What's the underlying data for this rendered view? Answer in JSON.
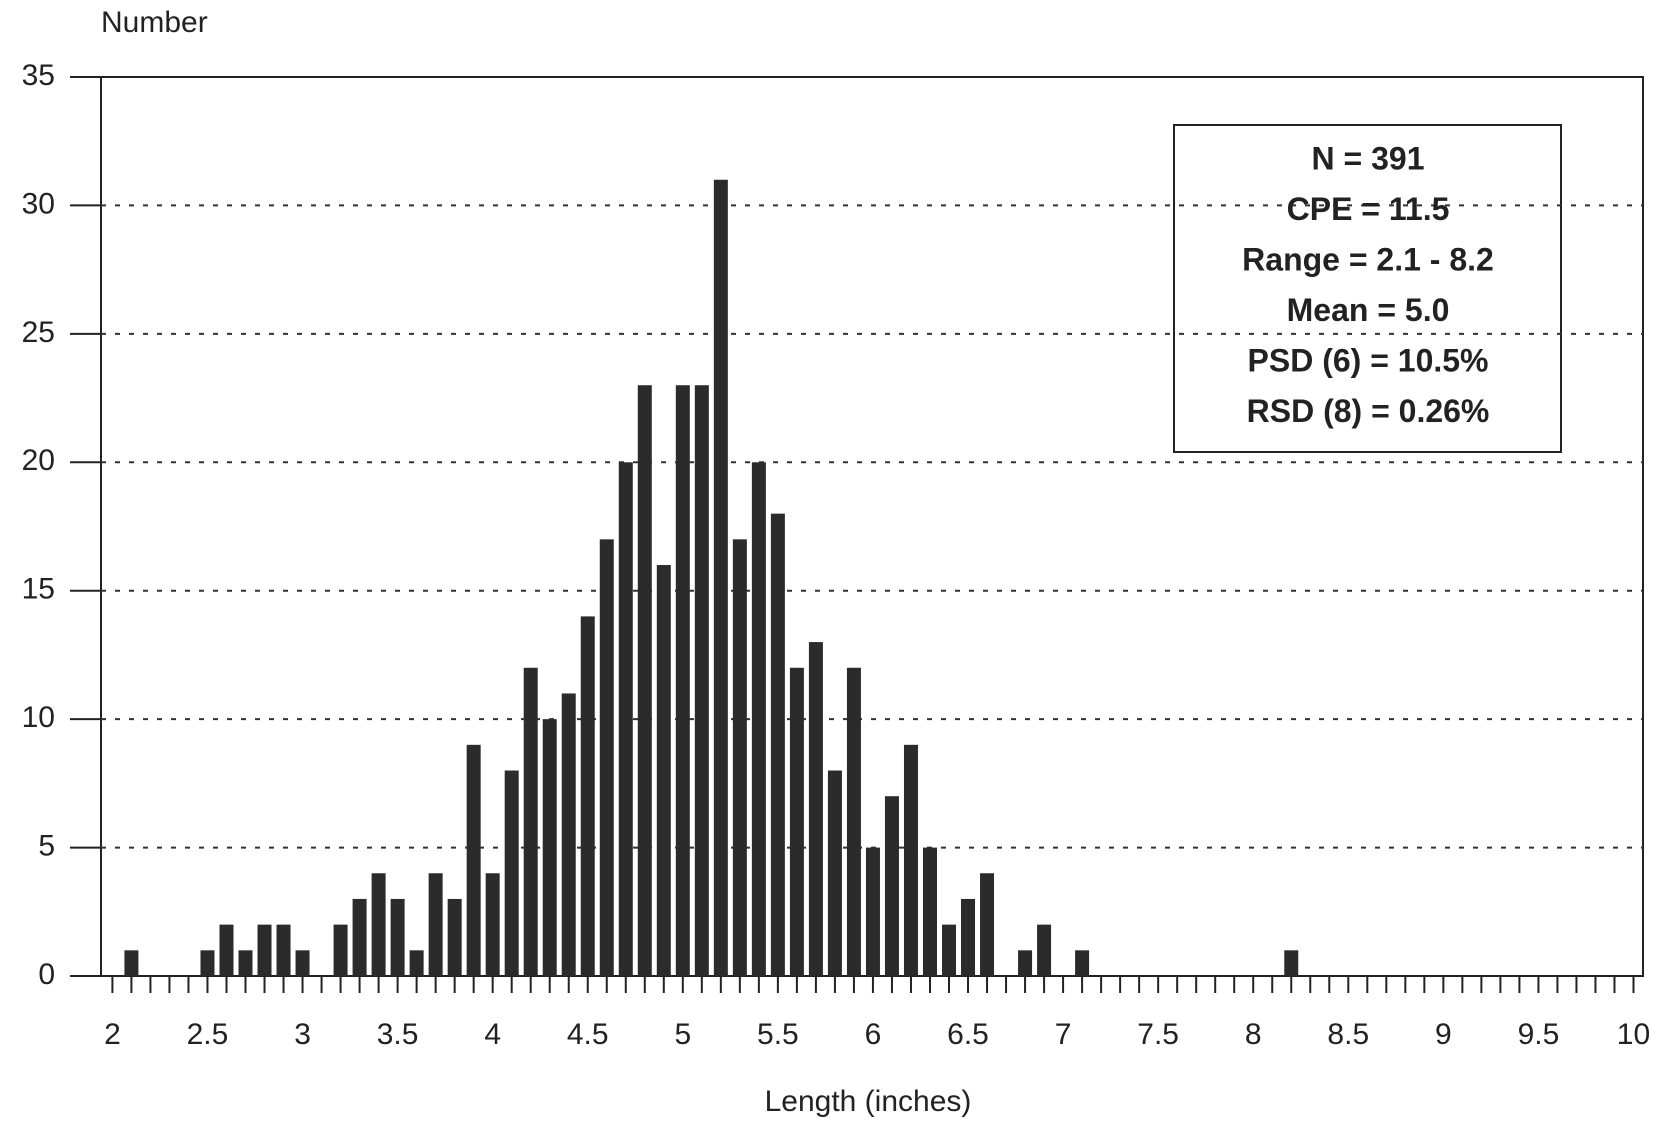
{
  "chart_data": {
    "type": "bar",
    "y_label": "Number",
    "x_label": "Length (inches)",
    "x": [
      2.1,
      2.5,
      2.6,
      2.7,
      2.8,
      2.9,
      3.0,
      3.2,
      3.3,
      3.4,
      3.5,
      3.6,
      3.7,
      3.8,
      3.9,
      4.0,
      4.1,
      4.2,
      4.3,
      4.4,
      4.5,
      4.6,
      4.7,
      4.8,
      4.9,
      5.0,
      5.1,
      5.2,
      5.3,
      5.4,
      5.5,
      5.6,
      5.7,
      5.8,
      5.9,
      6.0,
      6.1,
      6.2,
      6.3,
      6.4,
      6.5,
      6.6,
      6.8,
      6.9,
      7.1,
      8.2
    ],
    "values": [
      1,
      1,
      2,
      1,
      2,
      2,
      1,
      2,
      3,
      4,
      3,
      1,
      4,
      3,
      9,
      4,
      8,
      12,
      10,
      11,
      14,
      17,
      20,
      23,
      16,
      23,
      23,
      31,
      17,
      20,
      18,
      12,
      13,
      8,
      12,
      5,
      7,
      9,
      5,
      2,
      3,
      4,
      1,
      2,
      1,
      1
    ],
    "color": "#2b2b2b",
    "xlim": [
      1.94,
      10.05
    ],
    "xticks": [
      2,
      2.5,
      3,
      3.5,
      4,
      4.5,
      5,
      5.5,
      6,
      6.5,
      7,
      7.5,
      8,
      8.5,
      9,
      9.5,
      10
    ],
    "ylim": [
      0,
      35
    ],
    "yticks": [
      0,
      5,
      10,
      15,
      20,
      25,
      30,
      35
    ],
    "grid": true,
    "annotations": [
      "N = 391",
      "CPE = 11.5",
      "Range = 2.1 - 8.2",
      "Mean = 5.0",
      "PSD (6) = 10.5%",
      "RSD (8) = 0.26%"
    ]
  }
}
